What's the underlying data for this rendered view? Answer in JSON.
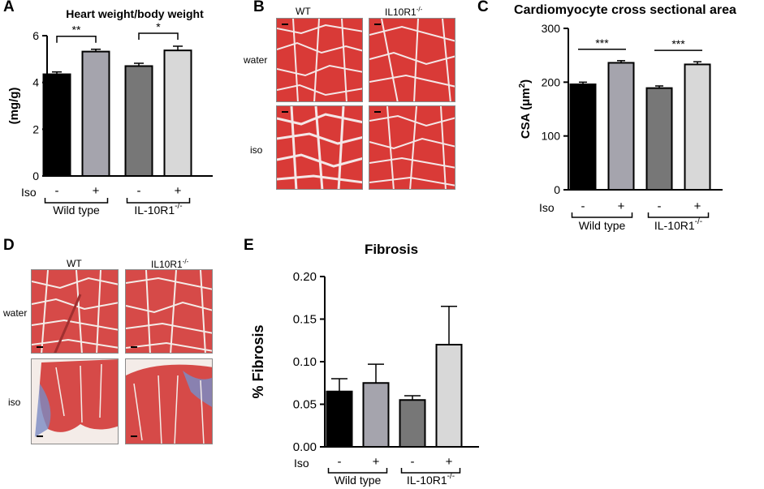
{
  "panel_letters": {
    "a": "A",
    "b": "B",
    "c": "C",
    "d": "D",
    "e": "E"
  },
  "panel_b": {
    "col_labels": [
      "WT",
      "IL10R1",
      "-/-"
    ],
    "row_labels": [
      "water",
      "iso"
    ],
    "colors": {
      "muscle": "#d93a37",
      "cell_border": "#f4e7e7"
    }
  },
  "panel_d": {
    "col_labels": [
      "WT",
      "IL10R1",
      "-/-"
    ],
    "row_labels": [
      "water",
      "iso"
    ],
    "colors": {
      "muscle": "#d64a48",
      "collagen": "#7b8bc3",
      "background": "#f4ece8"
    }
  },
  "chart_data": [
    {
      "id": "A",
      "type": "bar",
      "title": "Heart weight/body weight",
      "ylabel": "(mg/g)",
      "ylim": [
        0,
        6
      ],
      "yticks": [
        "0",
        "2",
        "4",
        "6"
      ],
      "categories": [
        "Wild type -",
        "Wild type +",
        "IL-10R1-/- -",
        "IL-10R1-/- +"
      ],
      "values": [
        4.35,
        5.32,
        4.7,
        5.37
      ],
      "errors": [
        0.1,
        0.1,
        0.12,
        0.18
      ],
      "colors": [
        "#000000",
        "#a5a4ad",
        "#777777",
        "#d8d8d8"
      ],
      "row_label": "Iso",
      "signs": [
        "-",
        "+",
        "-",
        "+"
      ],
      "groups": [
        "Wild type",
        "IL-10R1",
        "-/-"
      ],
      "significance": [
        "**",
        "*"
      ]
    },
    {
      "id": "C",
      "type": "bar",
      "title": "Cardiomyocyte cross sectional area",
      "ylabel": "CSA (μm",
      "ylabel_sup": "2",
      "ylabel_close": ")",
      "ylim": [
        0,
        300
      ],
      "yticks": [
        "0",
        "100",
        "200",
        "300"
      ],
      "categories": [
        "Wild type -",
        "Wild type +",
        "IL-10R1-/- -",
        "IL-10R1-/- +"
      ],
      "values": [
        196,
        236,
        189,
        233
      ],
      "errors": [
        4,
        4,
        4,
        5
      ],
      "colors": [
        "#000000",
        "#a5a4ad",
        "#777777",
        "#d8d8d8"
      ],
      "row_label": "Iso",
      "signs": [
        "-",
        "+",
        "-",
        "+"
      ],
      "groups": [
        "Wild type",
        "IL-10R1",
        "-/-"
      ],
      "significance": [
        "***",
        "***"
      ]
    },
    {
      "id": "E",
      "type": "bar",
      "title": "Fibrosis",
      "ylabel": "% Fibrosis",
      "ylim": [
        0,
        0.2
      ],
      "yticks": [
        "0.00",
        "0.05",
        "0.10",
        "0.15",
        "0.20"
      ],
      "categories": [
        "Wild type -",
        "Wild type +",
        "IL-10R1-/- -",
        "IL-10R1-/- +"
      ],
      "values": [
        0.065,
        0.075,
        0.055,
        0.12
      ],
      "errors": [
        0.015,
        0.022,
        0.005,
        0.045
      ],
      "colors": [
        "#000000",
        "#a5a4ad",
        "#777777",
        "#d8d8d8"
      ],
      "row_label": "Iso",
      "signs": [
        "-",
        "+",
        "-",
        "+"
      ],
      "groups": [
        "Wild type",
        "IL-10R1",
        "-/-"
      ],
      "significance": []
    }
  ]
}
